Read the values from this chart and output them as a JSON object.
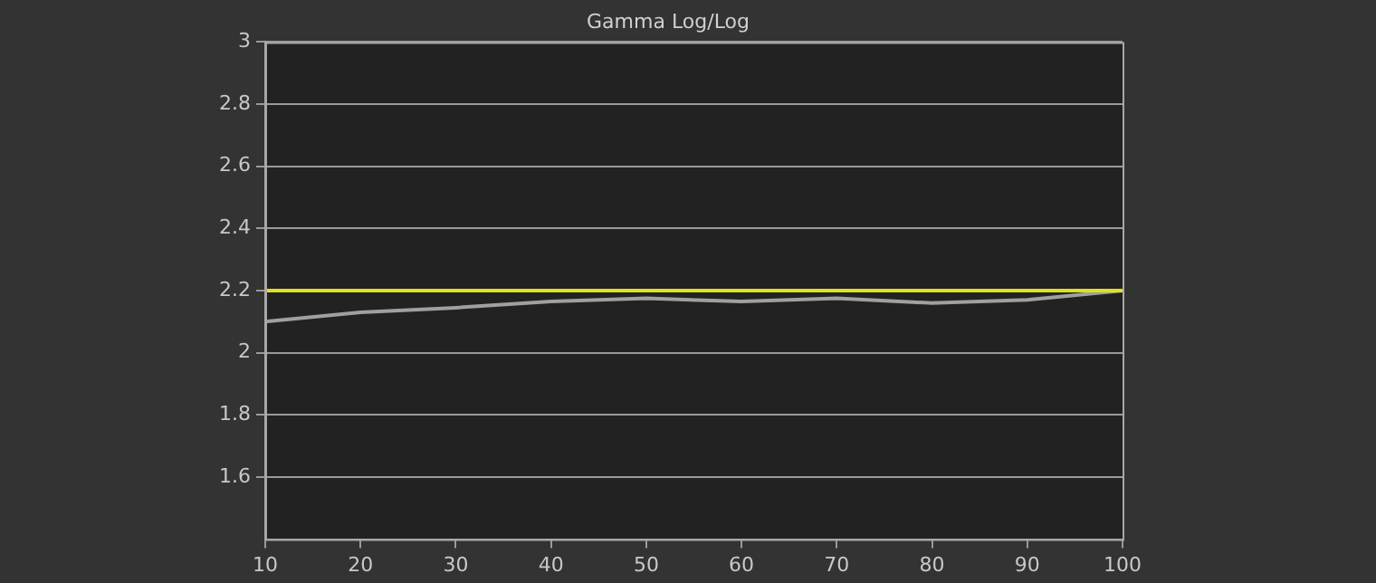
{
  "chart_data": {
    "type": "line",
    "title": "Gamma Log/Log",
    "x": [
      10,
      20,
      30,
      40,
      50,
      60,
      70,
      80,
      90,
      100
    ],
    "series": [
      {
        "color": "#a0a0a0",
        "values": [
          2.1,
          2.13,
          2.145,
          2.165,
          2.175,
          2.165,
          2.175,
          2.16,
          2.17,
          2.2
        ]
      }
    ],
    "xlim": [
      10,
      100
    ],
    "xticks": [
      10,
      20,
      30,
      40,
      50,
      60,
      70,
      80,
      90,
      100
    ],
    "ylim": [
      1.4,
      3
    ],
    "yticks": [
      1.6,
      1.8,
      2,
      2.2,
      2.4,
      2.6,
      2.8,
      3
    ],
    "ref_lines": [
      {
        "axis": "y",
        "value": 2.2,
        "color": "#e0e020"
      }
    ],
    "grid": "y",
    "legend": false,
    "marker": "none",
    "line_style": "solid"
  }
}
